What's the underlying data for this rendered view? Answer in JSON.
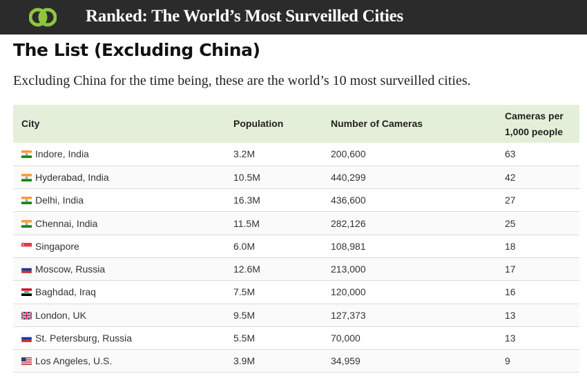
{
  "header": {
    "site_title": "Ranked: The World’s Most Surveilled Cities",
    "logo_icon": "double-circle-logo-icon"
  },
  "main": {
    "heading": "The List (Excluding China)",
    "intro": "Excluding China for the time being, these are the world’s 10 most surveilled cities."
  },
  "table": {
    "columns": [
      "City",
      "Population",
      "Number of Cameras",
      "Cameras per",
      "1,000 people"
    ],
    "rows": [
      {
        "flag": "india-flag-icon",
        "city": "Indore, India",
        "population": "3.2M",
        "cameras": "200,600",
        "per_1000": "63"
      },
      {
        "flag": "india-flag-icon",
        "city": "Hyderabad, India",
        "population": "10.5M",
        "cameras": "440,299",
        "per_1000": "42"
      },
      {
        "flag": "india-flag-icon",
        "city": "Delhi, India",
        "population": "16.3M",
        "cameras": "436,600",
        "per_1000": "27"
      },
      {
        "flag": "india-flag-icon",
        "city": "Chennai, India",
        "population": "11.5M",
        "cameras": "282,126",
        "per_1000": "25"
      },
      {
        "flag": "singapore-flag-icon",
        "city": "Singapore",
        "population": "6.0M",
        "cameras": "108,981",
        "per_1000": "18"
      },
      {
        "flag": "russia-flag-icon",
        "city": "Moscow, Russia",
        "population": "12.6M",
        "cameras": "213,000",
        "per_1000": "17"
      },
      {
        "flag": "iraq-flag-icon",
        "city": "Baghdad, Iraq",
        "population": "7.5M",
        "cameras": "120,000",
        "per_1000": "16"
      },
      {
        "flag": "uk-flag-icon",
        "city": "London, UK",
        "population": "9.5M",
        "cameras": "127,373",
        "per_1000": "13"
      },
      {
        "flag": "russia-flag-icon",
        "city": "St. Petersburg, Russia",
        "population": "5.5M",
        "cameras": "70,000",
        "per_1000": "13"
      },
      {
        "flag": "usa-flag-icon",
        "city": "Los Angeles, U.S.",
        "population": "3.9M",
        "cameras": "34,959",
        "per_1000": "9"
      }
    ]
  },
  "colors": {
    "header_bg": "#2b2b2b",
    "table_header_bg": "#e4efd9",
    "logo_green": "#8dc63f"
  }
}
